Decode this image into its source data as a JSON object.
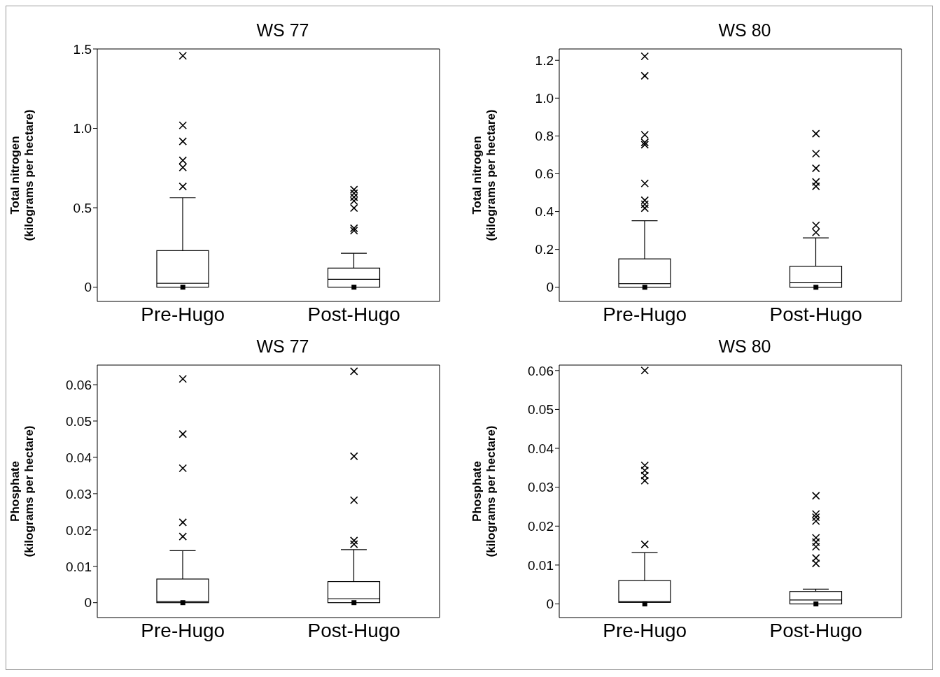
{
  "chart_data": [
    {
      "type": "box",
      "title": "WS 77",
      "ylabel": "Total nitrogen\n(kilograms per hectare)",
      "categories": [
        "Pre-Hugo",
        "Post-Hugo"
      ],
      "ylim": [
        -0.09,
        1.5
      ],
      "yticks": [
        0,
        0.5,
        {
          "value": 1,
          "label": "1.0"
        },
        1.5
      ],
      "marker": "cross",
      "boxes": [
        {
          "low": 0,
          "q1": 0,
          "median": 0.024,
          "q3": 0.23,
          "high": 0.563,
          "outliers": [
            1.457,
            1.019,
            0.918,
            0.798,
            0.754,
            0.634
          ]
        },
        {
          "low": 0,
          "q1": 0,
          "median": 0.049,
          "q3": 0.12,
          "high": 0.213,
          "outliers": [
            0.614,
            0.591,
            0.567,
            0.543,
            0.498,
            0.371,
            0.356
          ]
        }
      ],
      "series": [
        {
          "type": "scatter",
          "x": [
            "Pre-Hugo",
            "Post-Hugo"
          ],
          "values": [
            0,
            0
          ],
          "color": "#000000",
          "marker": "square"
        }
      ]
    },
    {
      "type": "box",
      "title": "WS 80",
      "ylabel": "Total nitrogen\n(kilograms per hectare)",
      "categories": [
        "Pre-Hugo",
        "Post-Hugo"
      ],
      "ylim": [
        -0.075,
        1.26
      ],
      "yticks": [
        0,
        0.2,
        0.4,
        0.6,
        0.8,
        {
          "value": 1,
          "label": "1.0"
        },
        1.2
      ],
      "marker": "cross",
      "boxes": [
        {
          "low": 0,
          "q1": 0,
          "median": 0.019,
          "q3": 0.15,
          "high": 0.352,
          "outliers": [
            1.221,
            1.118,
            0.806,
            0.766,
            0.754,
            0.549,
            0.46,
            0.439,
            0.418
          ]
        },
        {
          "low": 0,
          "q1": 0,
          "median": 0.026,
          "q3": 0.111,
          "high": 0.261,
          "outliers": [
            0.812,
            0.706,
            0.629,
            0.557,
            0.534,
            0.327,
            0.29
          ]
        }
      ],
      "series": [
        {
          "type": "scatter",
          "x": [
            "Pre-Hugo",
            "Post-Hugo"
          ],
          "values": [
            0,
            0
          ],
          "color": "#000000",
          "marker": "square"
        }
      ]
    },
    {
      "type": "box",
      "title": "WS 77",
      "ylabel": "Phosphate\n(kilograms per hectare)",
      "categories": [
        "Pre-Hugo",
        "Post-Hugo"
      ],
      "ylim": [
        -0.0041,
        0.0654
      ],
      "yticks": [
        0,
        0.01,
        0.02,
        0.03,
        0.04,
        0.05,
        0.06
      ],
      "marker": "cross",
      "boxes": [
        {
          "low": 0,
          "q1": 0,
          "median": 0.0003,
          "q3": 0.0065,
          "high": 0.0143,
          "outliers": [
            0.0616,
            0.0464,
            0.037,
            0.0221,
            0.0182
          ]
        },
        {
          "low": 0,
          "q1": 0,
          "median": 0.0011,
          "q3": 0.0058,
          "high": 0.0146,
          "outliers": [
            0.0637,
            0.0403,
            0.0282,
            0.0171,
            0.0161
          ]
        }
      ],
      "series": [
        {
          "type": "scatter",
          "x": [
            "Pre-Hugo",
            "Post-Hugo"
          ],
          "values": [
            0,
            0
          ],
          "color": "#000000",
          "marker": "square"
        }
      ]
    },
    {
      "type": "box",
      "title": "WS 80",
      "ylabel": "Phosphate\n(kilograms per hectare)",
      "categories": [
        "Pre-Hugo",
        "Post-Hugo"
      ],
      "ylim": [
        -0.0035,
        0.0614
      ],
      "yticks": [
        0,
        0.01,
        0.02,
        0.03,
        0.04,
        0.05,
        0.06
      ],
      "marker": "cross",
      "boxes": [
        {
          "low": 0,
          "q1": 0.0004,
          "median": 0.0006,
          "q3": 0.006,
          "high": 0.0132,
          "outliers": [
            0.06,
            0.0356,
            0.0343,
            0.033,
            0.0317,
            0.0153
          ]
        },
        {
          "low": 0,
          "q1": 0,
          "median": 0.001,
          "q3": 0.0032,
          "high": 0.0038,
          "outliers": [
            0.0278,
            0.0231,
            0.0223,
            0.0213,
            0.017,
            0.0159,
            0.0147,
            0.0118,
            0.0104
          ]
        }
      ],
      "series": [
        {
          "type": "scatter",
          "x": [
            "Pre-Hugo",
            "Post-Hugo"
          ],
          "values": [
            0,
            0
          ],
          "color": "#000000",
          "marker": "square"
        }
      ]
    }
  ]
}
